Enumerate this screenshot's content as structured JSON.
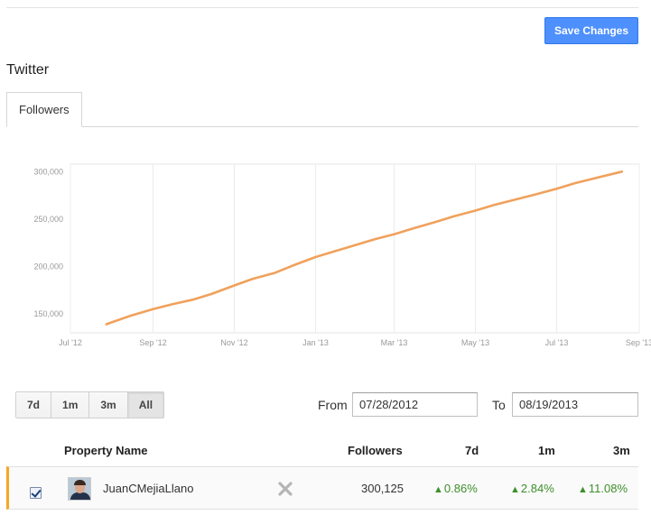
{
  "header": {
    "save_label": "Save Changes"
  },
  "section": {
    "title": "Twitter"
  },
  "tabs": [
    {
      "label": "Followers",
      "active": true
    }
  ],
  "chart_data": {
    "type": "line",
    "title": "",
    "xlabel": "",
    "ylabel": "",
    "x_ticks": [
      "Jul '12",
      "Sep '12",
      "Nov '12",
      "Jan '13",
      "Mar '13",
      "May '13",
      "Jul '13",
      "Sep '13"
    ],
    "y_ticks": [
      "150,000",
      "200,000",
      "250,000",
      "300,000"
    ],
    "ylim": [
      130000,
      308000
    ],
    "xlim": [
      "2012-07-01",
      "2013-09-01"
    ],
    "grid": true,
    "line_color": "#f0a15c",
    "series": [
      {
        "name": "",
        "x": [
          "2012-07-28",
          "2012-08-15",
          "2012-09-01",
          "2012-09-15",
          "2012-10-01",
          "2012-10-15",
          "2012-11-01",
          "2012-11-15",
          "2012-12-01",
          "2012-12-15",
          "2013-01-01",
          "2013-01-15",
          "2013-02-01",
          "2013-02-15",
          "2013-03-01",
          "2013-03-15",
          "2013-04-01",
          "2013-04-15",
          "2013-05-01",
          "2013-05-15",
          "2013-06-01",
          "2013-06-15",
          "2013-07-01",
          "2013-07-15",
          "2013-08-01",
          "2013-08-19"
        ],
        "y": [
          139000,
          148000,
          155000,
          160000,
          165000,
          171000,
          180000,
          187000,
          193000,
          201000,
          210000,
          216000,
          223000,
          229000,
          234000,
          240000,
          247000,
          253000,
          259000,
          265000,
          271000,
          276000,
          282000,
          288000,
          294000,
          300125
        ]
      }
    ]
  },
  "range_buttons": [
    {
      "label": "7d",
      "active": false
    },
    {
      "label": "1m",
      "active": false
    },
    {
      "label": "3m",
      "active": false
    },
    {
      "label": "All",
      "active": true
    }
  ],
  "dates": {
    "from_label": "From",
    "from_value": "07/28/2012",
    "to_label": "To",
    "to_value": "08/19/2013"
  },
  "table": {
    "headers": {
      "name": "Property Name",
      "followers": "Followers",
      "d7": "7d",
      "m1": "1m",
      "m3": "3m"
    },
    "rows": [
      {
        "checked": true,
        "name": "JuanCMejiaLlano",
        "followers": "300,125",
        "d7": "0.86%",
        "m1": "2.84%",
        "m3": "11.08%",
        "trend": "up"
      }
    ]
  },
  "icons": {
    "remove": "close-icon",
    "trend_up": "triangle-up-icon",
    "avatar": "user-avatar"
  },
  "colors": {
    "accent": "#4d90fe",
    "row_marker": "#f5a623",
    "positive": "#3d8f2a"
  }
}
